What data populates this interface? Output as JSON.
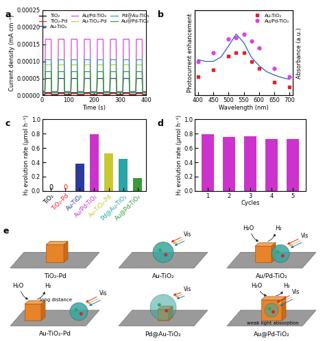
{
  "chart_data": [
    {
      "type": "line",
      "title": "a",
      "xlabel": "Time (s)",
      "ylabel": "Current density (mA cm⁻²)",
      "x": [
        0,
        10,
        12,
        34,
        36,
        60,
        62,
        84,
        86,
        110,
        112,
        134,
        136,
        160,
        162,
        184,
        186,
        210,
        212,
        234,
        236,
        260,
        262,
        284,
        286,
        310,
        312,
        334,
        336,
        360,
        362,
        384,
        386,
        400
      ],
      "xlim": [
        0,
        400
      ],
      "xticks": [
        0,
        100,
        200,
        300,
        400
      ],
      "ylim": [
        0,
        0.00025
      ],
      "yticks": [
        {
          "value": 0,
          "label": "0.00000"
        },
        {
          "value": 5e-05,
          "label": "0.00005"
        },
        {
          "value": 0.0001,
          "label": "0.00010"
        },
        {
          "value": 0.00015,
          "label": "0.00015"
        },
        {
          "value": 0.0002,
          "label": "0.00020"
        },
        {
          "value": 0.00025,
          "label": "0.00025"
        }
      ],
      "legend": "upper center",
      "series": [
        {
          "name": "TiO₂",
          "color": "#000000",
          "values": [
            3e-06,
            3e-06,
            8e-06,
            8e-06,
            3e-06,
            3e-06,
            8e-06,
            8e-06,
            3e-06,
            3e-06,
            8e-06,
            8e-06,
            3e-06,
            3e-06,
            8e-06,
            8e-06,
            3e-06,
            3e-06,
            8e-06,
            8e-06,
            3e-06,
            3e-06,
            8e-06,
            8e-06,
            3e-06,
            3e-06,
            8e-06,
            8e-06,
            3e-06,
            3e-06,
            8e-06,
            8e-06,
            3e-06,
            3e-06
          ]
        },
        {
          "name": "TiO₂-Pd",
          "color": "#e8202a",
          "values": [
            2e-06,
            2e-06,
            5e-06,
            5e-06,
            2e-06,
            2e-06,
            5e-06,
            5e-06,
            2e-06,
            2e-06,
            5e-06,
            5e-06,
            2e-06,
            2e-06,
            5e-06,
            5e-06,
            2e-06,
            2e-06,
            5e-06,
            5e-06,
            2e-06,
            2e-06,
            5e-06,
            5e-06,
            2e-06,
            2e-06,
            5e-06,
            5e-06,
            2e-06,
            2e-06,
            5e-06,
            5e-06,
            2e-06,
            2e-06
          ]
        },
        {
          "name": "Au-TiO₂",
          "color": "#2b3a9c",
          "values": [
            1e-05,
            1e-05,
            5e-05,
            5e-05,
            1e-05,
            1e-05,
            5e-05,
            5e-05,
            1e-05,
            1e-05,
            5e-05,
            5e-05,
            1e-05,
            1e-05,
            5e-05,
            5e-05,
            1e-05,
            1e-05,
            5e-05,
            5e-05,
            1e-05,
            1e-05,
            5e-05,
            5e-05,
            1e-05,
            1e-05,
            5e-05,
            5e-05,
            1e-05,
            1e-05,
            5e-05,
            5e-05,
            1e-05,
            1e-05
          ]
        },
        {
          "name": "Au/Pd-TiO₂",
          "color": "#e040e0",
          "values": [
            1.2e-05,
            1.2e-05,
            0.000165,
            0.000165,
            1.2e-05,
            1.2e-05,
            0.000165,
            0.000165,
            1.2e-05,
            1.2e-05,
            0.000165,
            0.000165,
            1.2e-05,
            1.2e-05,
            0.000165,
            0.000165,
            1.2e-05,
            1.2e-05,
            0.000165,
            0.000165,
            1.2e-05,
            1.2e-05,
            0.000165,
            0.000165,
            1.2e-05,
            1.2e-05,
            0.000165,
            0.000165,
            1.2e-05,
            1.2e-05,
            0.000165,
            0.000165,
            1.2e-05,
            1.2e-05
          ]
        },
        {
          "name": "Au-TiO₂-Pd",
          "color": "#c8c832",
          "values": [
            1e-05,
            1e-05,
            9e-05,
            9e-05,
            1e-05,
            1e-05,
            9e-05,
            9e-05,
            1e-05,
            1e-05,
            9e-05,
            9e-05,
            1e-05,
            1e-05,
            9e-05,
            9e-05,
            1e-05,
            1e-05,
            9e-05,
            9e-05,
            1e-05,
            1e-05,
            9e-05,
            9e-05,
            1e-05,
            1e-05,
            9e-05,
            9e-05,
            1e-05,
            1e-05,
            9e-05,
            9e-05,
            1e-05,
            1e-05
          ]
        },
        {
          "name": "Pd@Au-TiO₂",
          "color": "#2aa5a5",
          "values": [
            1e-05,
            1e-05,
            0.000105,
            0.000105,
            1e-05,
            1e-05,
            0.000105,
            0.000105,
            1e-05,
            1e-05,
            0.000105,
            0.000105,
            1e-05,
            1e-05,
            0.000105,
            0.000105,
            1e-05,
            1e-05,
            0.000105,
            0.000105,
            1e-05,
            1e-05,
            0.000105,
            0.000105,
            1e-05,
            1e-05,
            0.000105,
            0.000105,
            1e-05,
            1e-05,
            0.000105,
            0.000105,
            1e-05,
            1e-05
          ]
        },
        {
          "name": "Au@Pd-TiO₂",
          "color": "#3a9a3a",
          "values": [
            8e-06,
            8e-06,
            7e-05,
            7e-05,
            8e-06,
            8e-06,
            7e-05,
            7e-05,
            8e-06,
            8e-06,
            7e-05,
            7e-05,
            8e-06,
            8e-06,
            7e-05,
            7e-05,
            8e-06,
            8e-06,
            7e-05,
            7e-05,
            8e-06,
            8e-06,
            7e-05,
            7e-05,
            8e-06,
            8e-06,
            7e-05,
            7e-05,
            8e-06,
            8e-06,
            7e-05,
            7e-05,
            8e-06,
            8e-06
          ]
        }
      ]
    },
    {
      "type": "scatter",
      "title": "b",
      "xlabel": "Wavelength (nm)",
      "ylabel": "Photocurrent enhancement",
      "y2label": "Absorbance (a.u.)",
      "xlim": [
        390,
        710
      ],
      "xticks": [
        400,
        450,
        500,
        550,
        600,
        650,
        700
      ],
      "ylim": [
        0,
        25
      ],
      "y2lim": [
        0,
        1
      ],
      "tick_labels": "x",
      "legend": "upper right",
      "series": [
        {
          "name": "Au-TiO₂",
          "type": "scatter",
          "marker": "square",
          "color": "#e8202a",
          "x": [
            400,
            450,
            500,
            525,
            550,
            575,
            600,
            650,
            700
          ],
          "values": [
            5.5,
            7.5,
            11.5,
            12.5,
            12.5,
            10,
            8,
            4,
            2.5
          ]
        },
        {
          "name": "Au/Pd-TiO₂",
          "type": "scatter",
          "marker": "circle",
          "color": "#e040e0",
          "x": [
            400,
            450,
            500,
            525,
            550,
            575,
            600,
            650,
            700
          ],
          "values": [
            10,
            12.5,
            16.5,
            17,
            18,
            16,
            14,
            8,
            5.5
          ]
        },
        {
          "type": "line",
          "axis": "y2",
          "color": "#2b5fb4",
          "x": [
            400,
            425,
            450,
            475,
            500,
            525,
            550,
            575,
            600,
            625,
            650,
            675,
            700
          ],
          "values": [
            0.42,
            0.4,
            0.4,
            0.45,
            0.58,
            0.72,
            0.62,
            0.45,
            0.35,
            0.28,
            0.24,
            0.21,
            0.19
          ]
        }
      ]
    },
    {
      "type": "bar",
      "title": "c",
      "ylabel": "H₂ evolution rate (μmol h⁻¹)",
      "categories": [
        "TiO₂",
        "TiO₂-Pd",
        "Au-TiO₂",
        "Au/Pd-TiO₂",
        "Au-TiO₂-Pd",
        "Pd@Au-TiO₂",
        "Au@Pd-TiO₂"
      ],
      "values": [
        0,
        0,
        0.38,
        0.79,
        0.52,
        0.45,
        0.18
      ],
      "value_labels": [
        "0",
        "0",
        null,
        null,
        null,
        null,
        null
      ],
      "colors": [
        "#000000",
        "#e8202a",
        "#2b3a9c",
        "#cc33cc",
        "#c8c832",
        "#2aa5a5",
        "#3a9a3a"
      ],
      "ylim": [
        0,
        1.0
      ],
      "yticks": [
        {
          "value": 0,
          "label": "0.0"
        },
        0.2,
        0.4,
        0.6,
        0.8,
        {
          "value": 1.0,
          "label": "1.0"
        }
      ]
    },
    {
      "type": "bar",
      "title": "d",
      "xlabel": "Cycles",
      "ylabel": "H₂ evolution rate (μmol h⁻¹)",
      "categories": [
        "1",
        "2",
        "3",
        "4",
        "5"
      ],
      "values": [
        0.79,
        0.755,
        0.76,
        0.73,
        0.73
      ],
      "color": "#cc33cc",
      "ylim": [
        0,
        1.0
      ],
      "yticks": [
        {
          "value": 0,
          "label": "0.0"
        },
        0.2,
        0.4,
        0.6,
        0.8,
        {
          "value": 1.0,
          "label": "1.0"
        }
      ]
    }
  ],
  "diagram": {
    "label": "e",
    "panels": [
      {
        "caption": "TiO₂-Pd"
      },
      {
        "caption": "Au-TiO₂",
        "light": "Vis"
      },
      {
        "caption": "Au/Pd-TiO₂",
        "reactants": [
          "H₂O",
          "H₂"
        ],
        "light": "Vis"
      },
      {
        "caption": "Au-TiO₂-Pd",
        "reactants": [
          "H₂O",
          "H₂"
        ],
        "light": "Vis",
        "note": "long distance"
      },
      {
        "caption": "Pd@Au-TiO₂",
        "light": "Vis"
      },
      {
        "caption": "Au@Pd-TiO₂",
        "reactants": [
          "H₂O",
          "H₂"
        ],
        "light": "Vis",
        "note": "weak light absorption"
      }
    ]
  }
}
